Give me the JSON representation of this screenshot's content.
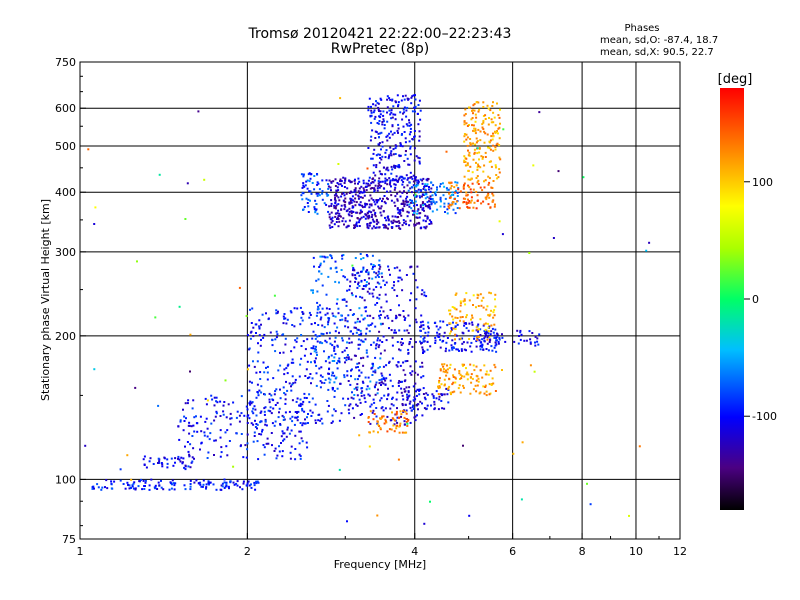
{
  "chart_data": {
    "type": "scatter",
    "title": "Tromsø 20120421 22:22:00–22:23:43",
    "subtitle": "RwPretec (8p)",
    "xlabel": "Frequency [MHz]",
    "ylabel": "Stationary phase Virtual Height [km]",
    "x_scale": "log",
    "y_scale": "log",
    "xlim": [
      1,
      12
    ],
    "ylim": [
      75,
      750
    ],
    "x_ticks": [
      1,
      2,
      4,
      6,
      8,
      10,
      12
    ],
    "x_tick_labels": [
      "1",
      "2",
      "4",
      "6",
      "8",
      "10",
      "12"
    ],
    "y_ticks": [
      75,
      100,
      200,
      300,
      400,
      500,
      600,
      750
    ],
    "y_tick_labels": [
      "75",
      "100",
      "200",
      "300",
      "400",
      "500",
      "600",
      "750"
    ],
    "grid": true,
    "phases": {
      "heading": "Phases",
      "line_o": "mean, sd,O: -87.4, 18.7",
      "line_x": "mean, sd,X:  90.5, 22.7"
    },
    "colorbar": {
      "label": "[deg]",
      "range": [
        -180,
        180
      ],
      "ticks": [
        100,
        0,
        -100
      ],
      "tick_labels": [
        "100",
        "0",
        "-100"
      ],
      "colormap": "rainbow"
    },
    "clusters": [
      {
        "f0": 1.05,
        "f1": 2.1,
        "h0": 95,
        "h1": 100,
        "phase": -95,
        "n": 140
      },
      {
        "f0": 1.3,
        "f1": 1.6,
        "h0": 105,
        "h1": 112,
        "phase": -100,
        "n": 40
      },
      {
        "f0": 1.5,
        "f1": 2.6,
        "h0": 110,
        "h1": 150,
        "phase": -100,
        "n": 220
      },
      {
        "f0": 2.0,
        "f1": 3.0,
        "h0": 130,
        "h1": 230,
        "phase": -95,
        "n": 320
      },
      {
        "f0": 2.6,
        "f1": 3.5,
        "h0": 150,
        "h1": 300,
        "phase": -75,
        "n": 200
      },
      {
        "f0": 3.0,
        "f1": 4.2,
        "h0": 130,
        "h1": 280,
        "phase": -110,
        "n": 380
      },
      {
        "f0": 3.3,
        "f1": 3.9,
        "h0": 125,
        "h1": 140,
        "phase": 130,
        "n": 60
      },
      {
        "f0": 3.8,
        "f1": 4.6,
        "h0": 140,
        "h1": 155,
        "phase": -110,
        "n": 60
      },
      {
        "f0": 4.1,
        "f1": 5.7,
        "h0": 185,
        "h1": 215,
        "phase": -100,
        "n": 140
      },
      {
        "f0": 4.4,
        "f1": 5.6,
        "h0": 150,
        "h1": 175,
        "phase": 115,
        "n": 110
      },
      {
        "f0": 4.6,
        "f1": 5.6,
        "h0": 195,
        "h1": 250,
        "phase": 110,
        "n": 90
      },
      {
        "f0": 5.2,
        "f1": 6.7,
        "h0": 190,
        "h1": 205,
        "phase": -105,
        "n": 50
      },
      {
        "f0": 2.5,
        "f1": 2.8,
        "h0": 360,
        "h1": 440,
        "phase": -80,
        "n": 70
      },
      {
        "f0": 2.8,
        "f1": 4.3,
        "h0": 335,
        "h1": 430,
        "phase": -120,
        "n": 520
      },
      {
        "f0": 3.3,
        "f1": 4.1,
        "h0": 420,
        "h1": 640,
        "phase": -105,
        "n": 260
      },
      {
        "f0": 3.9,
        "f1": 4.8,
        "h0": 360,
        "h1": 420,
        "phase": -65,
        "n": 90
      },
      {
        "f0": 4.6,
        "f1": 5.6,
        "h0": 370,
        "h1": 420,
        "phase": 140,
        "n": 90
      },
      {
        "f0": 4.9,
        "f1": 5.7,
        "h0": 420,
        "h1": 620,
        "phase": 115,
        "n": 180
      },
      {
        "f0": 1.0,
        "f1": 11.0,
        "h0": 80,
        "h1": 650,
        "phase": 0,
        "n": 70,
        "sparse": true
      }
    ]
  }
}
